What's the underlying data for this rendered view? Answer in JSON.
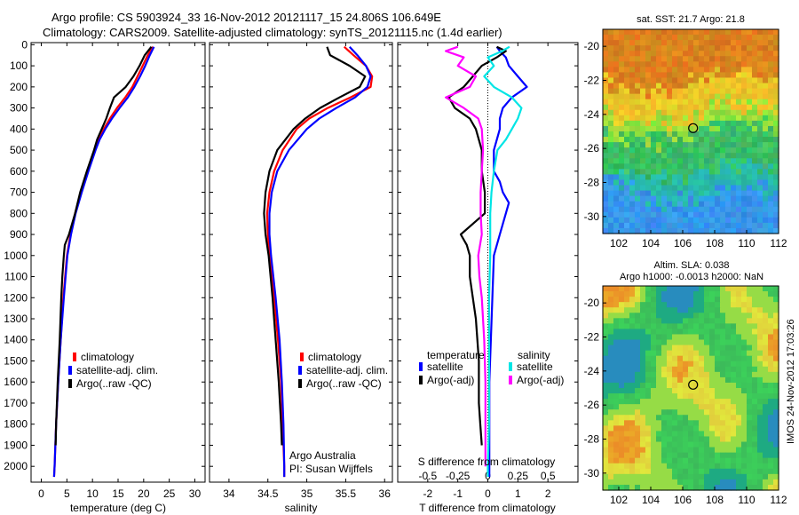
{
  "header": {
    "line1": "Argo profile: CS 5903924_33 16-Nov-2012 20121117_15 24.806S 106.649E",
    "line2": "Climatology: CARS2009. Satellite-adjusted climatology: synTS_20121115.nc (1.4d earlier)"
  },
  "colors": {
    "climatology": "#ff0000",
    "satellite": "#0000ff",
    "argo": "#000000",
    "sal_satellite": "#00e5e5",
    "sal_argo": "#ff00ff"
  },
  "chart_data": [
    {
      "type": "line",
      "id": "temperature",
      "xlabel": "temperature (deg C)",
      "xlim": [
        -2,
        32
      ],
      "ylim": [
        2075,
        -10
      ],
      "xticks": [
        0,
        5,
        10,
        15,
        20,
        25,
        30
      ],
      "yticks": [
        0,
        100,
        200,
        300,
        400,
        500,
        600,
        700,
        800,
        900,
        1000,
        1100,
        1200,
        1300,
        1400,
        1500,
        1600,
        1700,
        1800,
        1900,
        2000
      ],
      "legend": {
        "entries": [
          "climatology",
          "satellite-adj. clim.",
          "Argo(..raw -QC)"
        ],
        "placement": "lower-middle"
      },
      "series": [
        {
          "name": "climatology",
          "color": "#ff0000",
          "depth": [
            10,
            50,
            100,
            150,
            200,
            250,
            300,
            350,
            400,
            450,
            500,
            600,
            700,
            800,
            900,
            1000,
            1200,
            1400,
            1600,
            1800,
            2000,
            2050
          ],
          "values": [
            21.8,
            20.8,
            19.8,
            18.8,
            17.8,
            16.4,
            14.8,
            13.4,
            12.2,
            11.2,
            10.5,
            9.1,
            7.8,
            6.6,
            5.7,
            5.0,
            4.3,
            3.8,
            3.3,
            2.9,
            2.6,
            2.5
          ]
        },
        {
          "name": "satellite-adj. clim.",
          "color": "#0000ff",
          "depth": [
            10,
            50,
            100,
            150,
            200,
            250,
            300,
            350,
            400,
            450,
            500,
            600,
            700,
            800,
            900,
            1000,
            1200,
            1400,
            1600,
            1800,
            2000,
            2050
          ],
          "values": [
            22.0,
            21.2,
            20.3,
            19.3,
            18.2,
            16.9,
            15.3,
            13.8,
            12.5,
            11.4,
            10.6,
            9.2,
            7.9,
            6.7,
            5.8,
            5.1,
            4.4,
            3.8,
            3.3,
            2.9,
            2.6,
            2.5
          ]
        },
        {
          "name": "Argo(..raw -QC)",
          "color": "#000000",
          "depth": [
            10,
            50,
            100,
            150,
            200,
            250,
            300,
            350,
            400,
            450,
            500,
            600,
            700,
            800,
            900,
            950,
            1000,
            1100,
            1200,
            1400,
            1600,
            1800,
            1900
          ],
          "values": [
            21.5,
            20.2,
            19.2,
            18.0,
            16.5,
            14.2,
            13.4,
            12.7,
            11.8,
            10.9,
            10.3,
            8.9,
            7.6,
            6.6,
            5.4,
            4.6,
            4.4,
            4.1,
            3.9,
            3.6,
            3.2,
            2.9,
            2.8
          ]
        }
      ]
    },
    {
      "type": "line",
      "id": "salinity",
      "xlabel": "salinity",
      "xlim": [
        33.75,
        36.1
      ],
      "ylim": [
        2075,
        -10
      ],
      "xticks": [
        34,
        34.5,
        35,
        35.5,
        36
      ],
      "annotation_lines": [
        "Argo Australia",
        "PI: Susan Wijffels"
      ],
      "legend": {
        "entries": [
          "climatology",
          "satellite-adj. clim.",
          "Argo(..raw -QC)"
        ],
        "placement": "lower-right"
      },
      "series": [
        {
          "name": "climatology",
          "color": "#ff0000",
          "depth": [
            10,
            50,
            100,
            150,
            200,
            250,
            300,
            350,
            400,
            500,
            600,
            700,
            800,
            900,
            1000,
            1200,
            1400,
            1600,
            1800,
            2000,
            2050
          ],
          "values": [
            35.48,
            35.6,
            35.76,
            35.84,
            35.82,
            35.56,
            35.27,
            35.03,
            34.87,
            34.69,
            34.58,
            34.52,
            34.49,
            34.5,
            34.52,
            34.58,
            34.63,
            34.67,
            34.69,
            34.71,
            34.71
          ]
        },
        {
          "name": "satellite-adj. clim.",
          "color": "#0000ff",
          "depth": [
            10,
            50,
            100,
            150,
            200,
            250,
            300,
            350,
            400,
            500,
            600,
            700,
            800,
            900,
            1000,
            1200,
            1400,
            1600,
            1800,
            2000,
            2050
          ],
          "values": [
            35.55,
            35.65,
            35.76,
            35.82,
            35.78,
            35.62,
            35.38,
            35.16,
            35.0,
            34.77,
            34.62,
            34.55,
            34.52,
            34.52,
            34.54,
            34.6,
            34.65,
            34.68,
            34.7,
            34.71,
            34.71
          ]
        },
        {
          "name": "Argo(..raw -QC)",
          "color": "#000000",
          "depth": [
            10,
            50,
            100,
            150,
            200,
            250,
            300,
            350,
            400,
            500,
            600,
            700,
            800,
            900,
            1000,
            1200,
            1400,
            1600,
            1800,
            1900
          ],
          "values": [
            35.26,
            35.3,
            35.55,
            35.75,
            35.68,
            35.42,
            35.17,
            34.98,
            34.83,
            34.62,
            34.52,
            34.47,
            34.45,
            34.47,
            34.51,
            34.56,
            34.6,
            34.64,
            34.67,
            34.68
          ]
        }
      ]
    },
    {
      "type": "line",
      "id": "difference",
      "xlabel": "T difference from climatology",
      "xlabel_top": "S difference from climatology",
      "xlim": [
        -3,
        3
      ],
      "ylim": [
        2075,
        -10
      ],
      "xticks": [
        -2,
        -1,
        0,
        1,
        2
      ],
      "sticks": [
        -0.5,
        -0.25,
        0,
        0.25,
        0.5
      ],
      "sticklabels": [
        "-0.5",
        "-0.25",
        "0",
        "0.25",
        "0.5"
      ],
      "legend": {
        "groups": [
          "temperature",
          "salinity"
        ],
        "entries": [
          "satellite",
          "Argo(-adj)",
          "satellite",
          "Argo(-adj)"
        ],
        "placement": "lower"
      },
      "series": [
        {
          "name": "temperature satellite",
          "color": "#0000ff",
          "depth": [
            10,
            30,
            60,
            100,
            150,
            200,
            250,
            300,
            350,
            400,
            500,
            600,
            650,
            700,
            750,
            800,
            900,
            1000,
            1200,
            1400,
            1600,
            1800,
            2000,
            2050
          ],
          "values": [
            0.3,
            0.4,
            0.6,
            0.7,
            1.0,
            1.3,
            0.8,
            0.5,
            0.4,
            0.4,
            0.2,
            0.2,
            0.4,
            0.5,
            0.7,
            0.6,
            0.4,
            0.2,
            0.15,
            0.1,
            0.05,
            0.05,
            0.05,
            0.05
          ]
        },
        {
          "name": "temperature Argo(-adj)",
          "color": "#000000",
          "depth": [
            10,
            30,
            60,
            100,
            150,
            200,
            250,
            300,
            350,
            400,
            500,
            600,
            700,
            800,
            900,
            950,
            1000,
            1100,
            1200,
            1300,
            1400,
            1500,
            1600,
            1700,
            1800,
            1900
          ],
          "values": [
            0.3,
            0.6,
            0.3,
            -0.2,
            -0.5,
            -0.8,
            -1.3,
            -1.1,
            -0.6,
            -0.4,
            -0.2,
            -0.2,
            -0.1,
            -0.1,
            -0.9,
            -0.7,
            -0.6,
            -0.6,
            -0.5,
            -0.4,
            -0.35,
            -0.3,
            -0.3,
            -0.3,
            -0.25,
            -0.2
          ]
        },
        {
          "name": "salinity satellite",
          "color": "#00e5e5",
          "depth": [
            10,
            30,
            60,
            100,
            150,
            200,
            250,
            300,
            350,
            400,
            450,
            500,
            600,
            700,
            800,
            900,
            1000,
            1200,
            1400,
            1600,
            1800,
            2000,
            2050
          ],
          "values": [
            0.18,
            0.12,
            0.0,
            0.05,
            -0.03,
            0.05,
            0.2,
            0.28,
            0.25,
            0.2,
            0.15,
            0.08,
            0.05,
            0.03,
            0.02,
            0.02,
            0.02,
            0.01,
            0.01,
            0.01,
            0.01,
            0.0,
            0.0
          ]
        },
        {
          "name": "salinity Argo(-adj)",
          "color": "#ff00ff",
          "depth": [
            10,
            30,
            60,
            100,
            150,
            200,
            250,
            300,
            350,
            400,
            500,
            600,
            700,
            800,
            900,
            1000,
            1100,
            1200,
            1400,
            1600,
            1800,
            2000
          ],
          "values": [
            -0.25,
            -0.35,
            -0.2,
            -0.25,
            -0.1,
            -0.15,
            -0.35,
            -0.2,
            -0.08,
            -0.05,
            -0.04,
            -0.05,
            -0.06,
            -0.06,
            -0.05,
            -0.08,
            -0.07,
            -0.05,
            -0.03,
            -0.02,
            -0.02,
            -0.02
          ]
        }
      ]
    },
    {
      "type": "heatmap",
      "id": "sst_map",
      "title": "sat. SST: 21.7 Argo: 21.8",
      "xlim": [
        101,
        112
      ],
      "ylim": [
        -31,
        -19
      ],
      "xticks": [
        102,
        104,
        106,
        108,
        110,
        112
      ],
      "yticks": [
        -20,
        -22,
        -24,
        -26,
        -28,
        -30
      ],
      "marker": {
        "lon": 106.649,
        "lat": -24.806
      },
      "field": "north-warm gradient (orange north, green centre, blue south-west)"
    },
    {
      "type": "heatmap",
      "id": "sla_map",
      "title_lines": [
        "Altim. SLA: 0.038",
        "Argo h1000: -0.0013 h2000: NaN"
      ],
      "xlim": [
        101,
        112
      ],
      "ylim": [
        -31,
        -19
      ],
      "xticks": [
        102,
        104,
        106,
        108,
        110,
        112
      ],
      "yticks": [
        -20,
        -22,
        -24,
        -26,
        -28,
        -30
      ],
      "marker": {
        "lon": 106.649,
        "lat": -24.806
      },
      "field": "eddy pattern (green background with yellow/orange highs and blue lows)"
    }
  ],
  "footer": {
    "stamp": "IMOS 24-Nov-2012 17:03:26"
  }
}
